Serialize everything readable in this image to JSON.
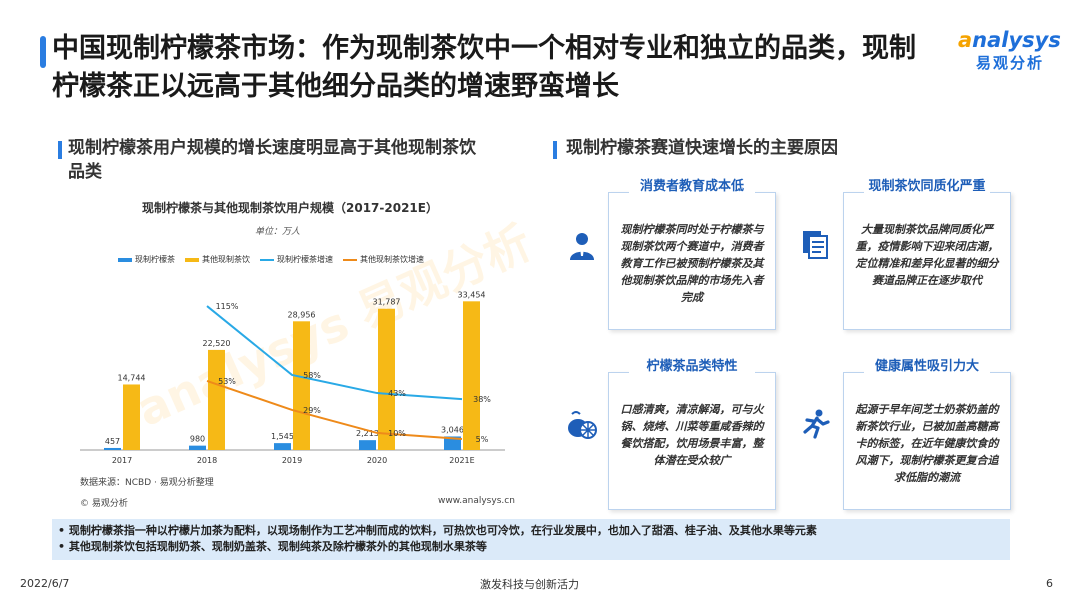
{
  "header": {
    "title": "中国现制柠檬茶市场：作为现制茶饮中一个相对专业和独立的品类，现制柠檬茶正以远高于其他细分品类的增速野蛮增长",
    "logo_en_a": "a",
    "logo_en_rest": "nalysys",
    "logo_cn": "易观分析"
  },
  "left_section": {
    "heading": "现制柠檬茶用户规模的增长速度明显高于其他现制茶饮品类"
  },
  "right_section": {
    "heading": "现制柠檬茶赛道快速增长的主要原因"
  },
  "chart_data": {
    "type": "bar",
    "title": "现制柠檬茶与其他现制茶饮用户规模（2017-2021E）",
    "unit": "单位：万人",
    "categories": [
      "2017",
      "2018",
      "2019",
      "2020",
      "2021E"
    ],
    "series": [
      {
        "name": "现制柠檬茶",
        "type": "bar",
        "color": "#2a8de0",
        "values": [
          457,
          980,
          1545,
          2213,
          3046
        ],
        "labels": [
          "457",
          "980",
          "1,545",
          "2,213",
          "3,046"
        ]
      },
      {
        "name": "其他现制茶饮",
        "type": "bar",
        "color": "#f6b916",
        "values": [
          14744,
          22520,
          28956,
          31787,
          33454
        ],
        "labels": [
          "14,744",
          "22,520",
          "28,956",
          "31,787",
          "33,454"
        ]
      },
      {
        "name": "现制柠檬茶增速",
        "type": "line",
        "color": "#29a9e6",
        "values": [
          null,
          115,
          58,
          43,
          38
        ],
        "labels": [
          "",
          "115%",
          "58%",
          "43%",
          "38%"
        ]
      },
      {
        "name": "其他现制茶饮增速",
        "type": "line",
        "color": "#ee8a1a",
        "values": [
          null,
          53,
          29,
          10,
          5
        ],
        "labels": [
          "",
          "53%",
          "29%",
          "10%",
          "5%"
        ]
      }
    ],
    "ylim": [
      0,
      36000
    ],
    "grid": false,
    "legend": "top",
    "source": "数据来源：NCBD · 易观分析整理",
    "copyright": "© 易观分析",
    "url": "www.analysys.cn"
  },
  "reasons": [
    {
      "title": "消费者教育成本低",
      "body": "现制柠檬茶同时处于柠檬茶与现制茶饮两个赛道中，消费者教育工作已被预制柠檬茶及其他现制茶饮品牌的市场先入者完成",
      "icon": "user-icon"
    },
    {
      "title": "现制茶饮同质化严重",
      "body": "大量现制茶饮品牌同质化严重，疫情影响下迎来闭店潮，定位精准和差异化显著的细分赛道品牌正在逐步取代",
      "icon": "documents-icon"
    },
    {
      "title": "柠檬茶品类特性",
      "body": "口感清爽，清凉解渴，可与火锅、烧烤、川菜等重咸香辣的餐饮搭配，饮用场景丰富，整体潜在受众较广",
      "icon": "lemon-icon"
    },
    {
      "title": "健康属性吸引力大",
      "body": "起源于早年间芝士奶茶奶盖的新茶饮行业，已被加盖高糖高卡的标签，在近年健康饮食的风潮下，现制柠檬茶更复合追求低脂的潮流",
      "icon": "runner-icon"
    }
  ],
  "notes": [
    "现制柠檬茶指一种以柠檬片加茶为配料，以现场制作为工艺冲制而成的饮料，可热饮也可冷饮，在行业发展中，也加入了甜酒、桂子油、及其他水果等元素",
    "其他现制茶饮包括现制奶茶、现制奶盖茶、现制纯茶及除柠檬茶外的其他现制水果茶等"
  ],
  "footer": {
    "date": "2022/6/7",
    "slogan": "激发科技与创新活力",
    "page": "6"
  },
  "watermark": "analysys 易观分析"
}
